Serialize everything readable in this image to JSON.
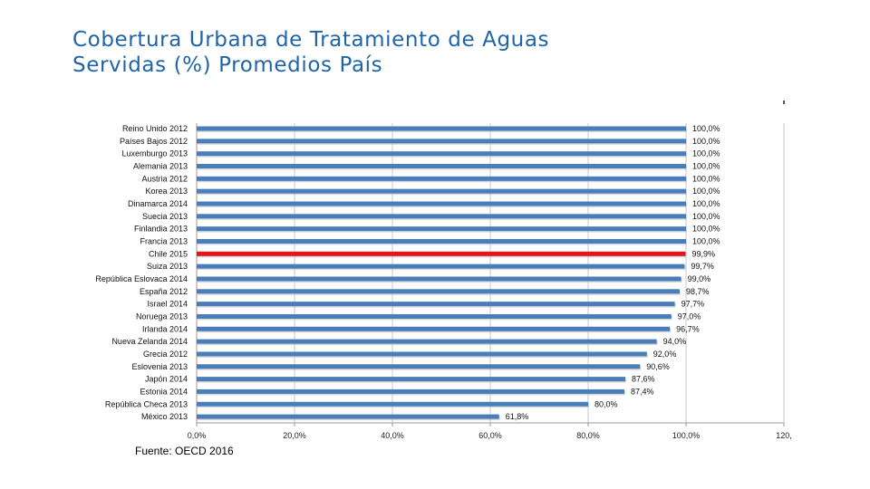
{
  "slide": {
    "title_line1": "Cobertura Urbana de Tratamiento de Aguas",
    "title_line2": "Servidas (%) Promedios País",
    "source": "Fuente: OECD 2016"
  },
  "colors": {
    "title": "#1f64a8",
    "bar": "#4a7ebb",
    "highlight": "#e3161d",
    "grid": "#c8c8c8"
  },
  "chart_data": {
    "type": "bar",
    "orientation": "horizontal",
    "title": "",
    "xlabel": "",
    "ylabel": "",
    "xlim": [
      0,
      120
    ],
    "grid": true,
    "highlight": "Chile 2015",
    "categories": [
      "Reino Unido 2012",
      "Países Bajos 2012",
      "Luxemburgo 2013",
      "Alemania 2013",
      "Austria 2012",
      "Korea 2013",
      "Dinamarca 2014",
      "Suecia 2013",
      "Finlandia 2013",
      "Francia 2013",
      "Chile 2015",
      "Suiza 2013",
      "República Eslovaca 2014",
      "España 2012",
      "Israel 2014",
      "Noruega 2013",
      "Irlanda 2014",
      "Nueva Zelanda 2014",
      "Grecia 2012",
      "Eslovenia 2013",
      "Japón 2014",
      "Estonia 2014",
      "República Checa 2013",
      "México 2013"
    ],
    "values": [
      100,
      100,
      100,
      100,
      100,
      100,
      100,
      100,
      100,
      100,
      99.9,
      99.7,
      99.0,
      98.7,
      97.7,
      97.0,
      96.7,
      94.0,
      92.0,
      90.6,
      87.6,
      87.4,
      80.0,
      61.8
    ],
    "value_labels": [
      "100,0%",
      "100,0%",
      "100,0%",
      "100,0%",
      "100,0%",
      "100,0%",
      "100,0%",
      "100,0%",
      "100,0%",
      "100,0%",
      "99,9%",
      "99,7%",
      "99,0%",
      "98,7%",
      "97,7%",
      "97,0%",
      "96,7%",
      "94,0%",
      "92,0%",
      "90,6%",
      "87,6%",
      "87,4%",
      "80,0%",
      "61,8%"
    ],
    "x_ticks": [
      0,
      20,
      40,
      60,
      80,
      100,
      120
    ],
    "x_tick_labels": [
      "0,0%",
      "20,0%",
      "40,0%",
      "60,0%",
      "80,0%",
      "100,0%",
      "120,"
    ]
  }
}
